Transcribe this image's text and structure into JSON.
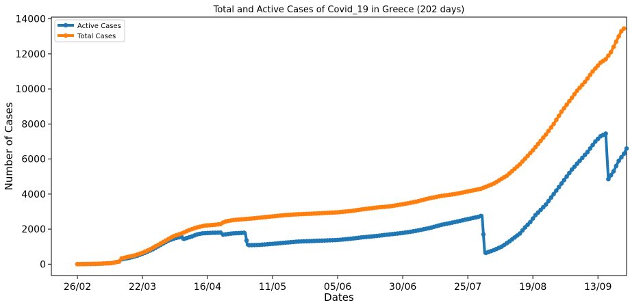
{
  "chart_data": {
    "type": "line",
    "title": "Total and Active Cases of Covid_19 in Greece (202 days)",
    "xlabel": "Dates",
    "ylabel": "Number of Cases",
    "x_unit": "day index from 26/02",
    "x_ticks": [
      {
        "label": "26/02",
        "x": 0
      },
      {
        "label": "22/03",
        "x": 25
      },
      {
        "label": "16/04",
        "x": 50
      },
      {
        "label": "11/05",
        "x": 75
      },
      {
        "label": "05/06",
        "x": 100
      },
      {
        "label": "30/06",
        "x": 125
      },
      {
        "label": "25/07",
        "x": 150
      },
      {
        "label": "19/08",
        "x": 175
      },
      {
        "label": "13/09",
        "x": 200
      }
    ],
    "y_ticks": [
      0,
      2000,
      4000,
      6000,
      8000,
      10000,
      12000,
      14000
    ],
    "xlim": [
      -10,
      211
    ],
    "ylim": [
      -650,
      14100
    ],
    "grid": false,
    "legend": "top-left",
    "series": [
      {
        "name": "Active Cases",
        "color": "#1f77b4",
        "points": [
          [
            0,
            0
          ],
          [
            8,
            20
          ],
          [
            13,
            60
          ],
          [
            16,
            150
          ],
          [
            17,
            280
          ],
          [
            20,
            360
          ],
          [
            23,
            480
          ],
          [
            26,
            650
          ],
          [
            29,
            850
          ],
          [
            32,
            1100
          ],
          [
            35,
            1350
          ],
          [
            38,
            1500
          ],
          [
            40,
            1560
          ],
          [
            40.5,
            1420
          ],
          [
            44,
            1580
          ],
          [
            46,
            1700
          ],
          [
            48,
            1760
          ],
          [
            52,
            1790
          ],
          [
            55,
            1800
          ],
          [
            55.7,
            1680
          ],
          [
            60,
            1760
          ],
          [
            63,
            1780
          ],
          [
            64.5,
            1800
          ],
          [
            65.3,
            1080
          ],
          [
            70,
            1100
          ],
          [
            75,
            1160
          ],
          [
            80,
            1230
          ],
          [
            85,
            1290
          ],
          [
            90,
            1320
          ],
          [
            100,
            1380
          ],
          [
            105,
            1450
          ],
          [
            110,
            1540
          ],
          [
            115,
            1610
          ],
          [
            120,
            1700
          ],
          [
            125,
            1780
          ],
          [
            130,
            1900
          ],
          [
            135,
            2050
          ],
          [
            140,
            2250
          ],
          [
            145,
            2400
          ],
          [
            150,
            2570
          ],
          [
            154,
            2700
          ],
          [
            155.5,
            2780
          ],
          [
            156.5,
            620
          ],
          [
            160,
            800
          ],
          [
            163,
            1000
          ],
          [
            166,
            1300
          ],
          [
            170,
            1750
          ],
          [
            172,
            2100
          ],
          [
            174,
            2400
          ],
          [
            176,
            2800
          ],
          [
            178,
            3100
          ],
          [
            180,
            3400
          ],
          [
            182,
            3800
          ],
          [
            185,
            4400
          ],
          [
            188,
            5000
          ],
          [
            190,
            5400
          ],
          [
            193,
            5900
          ],
          [
            196,
            6400
          ],
          [
            199,
            7000
          ],
          [
            201,
            7300
          ],
          [
            203,
            7450
          ],
          [
            204,
            4850
          ],
          [
            206,
            5300
          ],
          [
            208,
            5900
          ],
          [
            210,
            6300
          ],
          [
            211,
            6600
          ]
        ]
      },
      {
        "name": "Total Cases",
        "color": "#ff7f0e",
        "points": [
          [
            0,
            0
          ],
          [
            8,
            20
          ],
          [
            13,
            60
          ],
          [
            16,
            150
          ],
          [
            17,
            330
          ],
          [
            19,
            400
          ],
          [
            22,
            500
          ],
          [
            25,
            650
          ],
          [
            28,
            850
          ],
          [
            31,
            1100
          ],
          [
            34,
            1350
          ],
          [
            37,
            1600
          ],
          [
            40,
            1750
          ],
          [
            43,
            1950
          ],
          [
            46,
            2100
          ],
          [
            49,
            2200
          ],
          [
            53,
            2250
          ],
          [
            55.5,
            2300
          ],
          [
            56.3,
            2420
          ],
          [
            60,
            2520
          ],
          [
            65,
            2580
          ],
          [
            70,
            2650
          ],
          [
            75,
            2730
          ],
          [
            80,
            2800
          ],
          [
            85,
            2850
          ],
          [
            90,
            2880
          ],
          [
            95,
            2920
          ],
          [
            100,
            2960
          ],
          [
            105,
            3030
          ],
          [
            110,
            3140
          ],
          [
            115,
            3230
          ],
          [
            120,
            3300
          ],
          [
            125,
            3420
          ],
          [
            130,
            3560
          ],
          [
            135,
            3750
          ],
          [
            140,
            3900
          ],
          [
            145,
            4000
          ],
          [
            150,
            4150
          ],
          [
            155,
            4300
          ],
          [
            160,
            4600
          ],
          [
            165,
            5050
          ],
          [
            170,
            5700
          ],
          [
            175,
            6500
          ],
          [
            180,
            7400
          ],
          [
            183,
            8000
          ],
          [
            186,
            8700
          ],
          [
            189,
            9300
          ],
          [
            192,
            9900
          ],
          [
            195,
            10400
          ],
          [
            198,
            11000
          ],
          [
            201,
            11500
          ],
          [
            203,
            11700
          ],
          [
            205,
            12100
          ],
          [
            207,
            12700
          ],
          [
            208,
            13000
          ],
          [
            209,
            13300
          ],
          [
            210,
            13450
          ]
        ]
      }
    ]
  }
}
